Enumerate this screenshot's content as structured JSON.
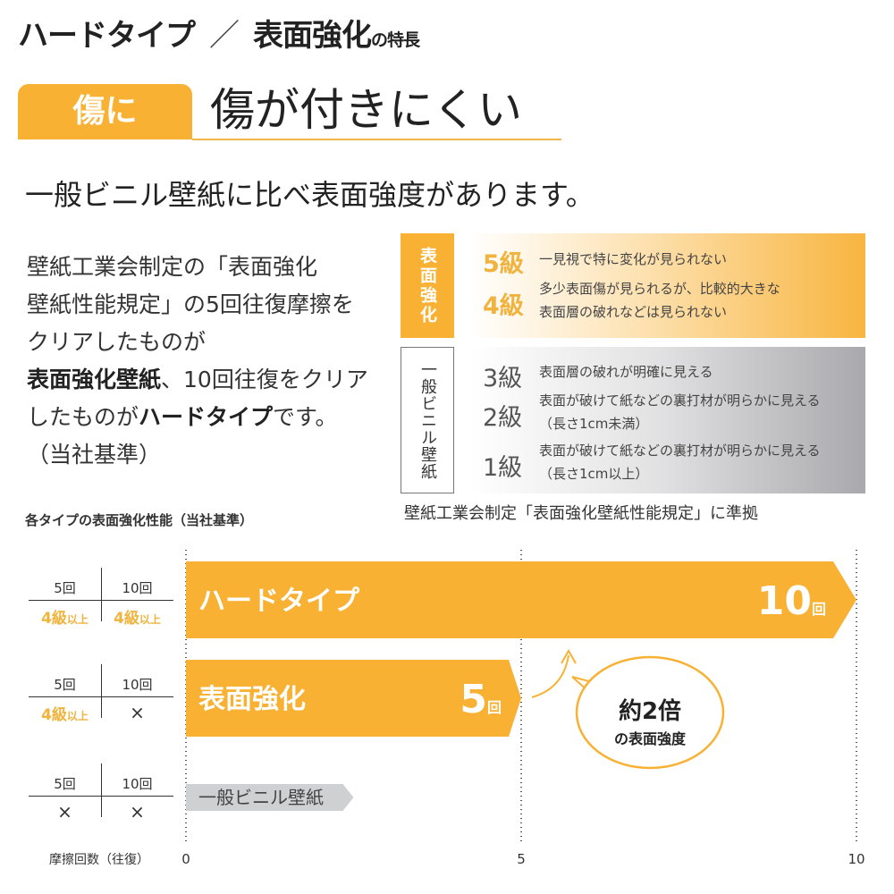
{
  "header": {
    "title_part1": "ハードタイプ",
    "separator": "／",
    "title_part2": "表面強化",
    "title_suffix": "の特長"
  },
  "section": {
    "tag": "傷に",
    "headline": "傷が付きにくい"
  },
  "lead": "一般ビニル壁紙に比べ表面強度があります。",
  "body": {
    "line1": "壁紙工業会制定の「表面強化",
    "line2": "壁紙性能規定」の5回往復摩擦を",
    "line3": "クリアしたものが",
    "line4_bold": "表面強化壁紙",
    "line4_rest": "、10回往復をクリア",
    "line5_pre": "したものが",
    "line5_bold": "ハードタイプ",
    "line5_post": "です。",
    "line6": "（当社基準）"
  },
  "grades": {
    "surface": {
      "label": "表面強化",
      "items": [
        {
          "grade": "5級",
          "desc": "一見視で特に変化が見られない"
        },
        {
          "grade": "4級",
          "desc": "多少表面傷が見られるが、比較的大きな",
          "desc2": "表面層の破れなどは見られない"
        }
      ]
    },
    "vinyl": {
      "label": "一般ビニル壁紙",
      "items": [
        {
          "grade": "3級",
          "desc": "表面層の破れが明確に見える"
        },
        {
          "grade": "2級",
          "desc": "表面が破けて紙などの裏打材が明らかに見える",
          "desc2": "（長さ1cm未満）"
        },
        {
          "grade": "1級",
          "desc": "表面が破けて紙などの裏打材が明らかに見える",
          "desc2": "（長さ1cm以上）"
        }
      ]
    },
    "note": "壁紙工業会制定「表面強化壁紙性能規定」に準拠"
  },
  "colors": {
    "accent": "#f8b133",
    "gray": "#cfd0d2"
  },
  "chart_data": {
    "type": "bar",
    "orientation": "horizontal",
    "title": "各タイプの表面強化性能（当社基準）",
    "xlabel": "摩擦回数（往復）",
    "xlim": [
      0,
      10
    ],
    "xticks": [
      "0",
      "5",
      "10"
    ],
    "grid": "dotted vertical at ticks",
    "categories": [
      "ハードタイプ",
      "表面強化",
      "一般ビニル壁紙"
    ],
    "values": [
      10,
      5,
      2.5
    ],
    "value_labels": [
      {
        "num": "10",
        "unit": "回"
      },
      {
        "num": "5",
        "unit": "回"
      },
      null
    ],
    "tables": [
      {
        "cols": [
          "5回",
          "10回"
        ],
        "cells": [
          {
            "main": "4級",
            "sub": "以上"
          },
          {
            "main": "4級",
            "sub": "以上"
          }
        ]
      },
      {
        "cols": [
          "5回",
          "10回"
        ],
        "cells": [
          {
            "main": "4級",
            "sub": "以上"
          },
          {
            "main": "×",
            "sub": ""
          }
        ]
      },
      {
        "cols": [
          "5回",
          "10回"
        ],
        "cells": [
          {
            "main": "×",
            "sub": ""
          },
          {
            "main": "×",
            "sub": ""
          }
        ]
      }
    ],
    "annotation": {
      "main": "約2倍",
      "sub": "の表面強度"
    }
  }
}
